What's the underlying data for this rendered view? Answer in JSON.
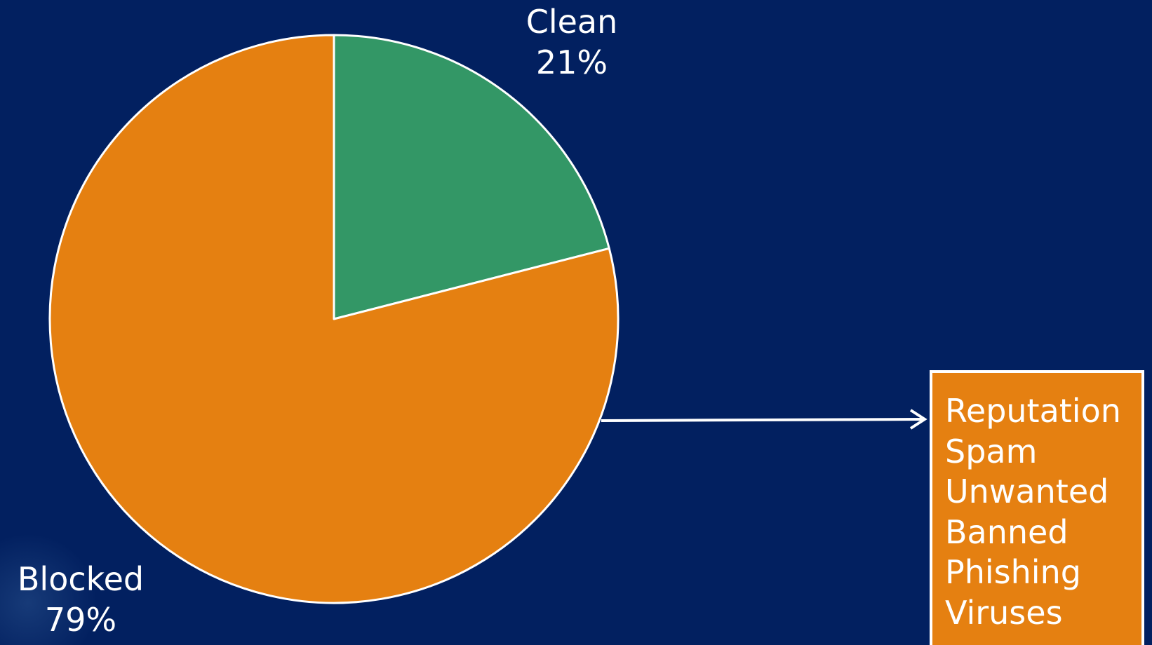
{
  "chart_data": {
    "type": "pie",
    "slices": [
      {
        "label": "Clean",
        "value": 21,
        "display": "21%",
        "color": "#339766"
      },
      {
        "label": "Blocked",
        "value": 79,
        "display": "79%",
        "color": "#e58011"
      }
    ],
    "start_angle_deg": 0,
    "direction": "clockwise",
    "slice_border_color": "#ffffff"
  },
  "background_color": "#022060",
  "callout": {
    "source_slice": "Blocked",
    "arrow_color": "#ffffff",
    "box_color": "#e58011",
    "items": [
      "Reputation",
      "Spam",
      "Unwanted",
      "Banned",
      "Phishing",
      "Viruses"
    ]
  }
}
